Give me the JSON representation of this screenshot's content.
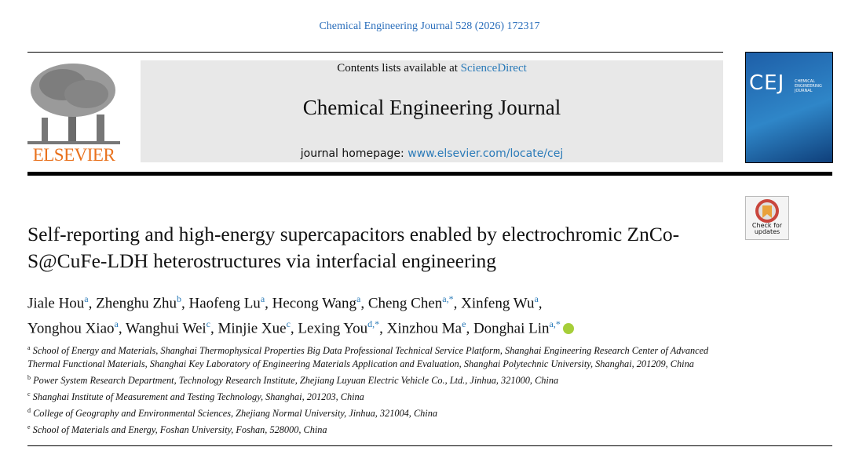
{
  "header": {
    "citation": "Chemical Engineering Journal 528 (2026) 172317",
    "contents_prefix": "Contents lists available at",
    "contents_link": "ScienceDirect",
    "journal": "Chemical Engineering Journal",
    "homepage_prefix": "journal homepage:",
    "homepage_link": "www.elsevier.com/locate/cej",
    "publisher": "ELSEVIER",
    "cover_title": "CEJ",
    "cover_subtitle": "CHEMICAL ENGINEERING JOURNAL",
    "check_updates": "Check for updates"
  },
  "article": {
    "title": "Self-reporting and high-energy supercapacitors enabled by electrochromic ZnCo-S@CuFe-LDH heterostructures via interfacial engineering",
    "authors": [
      [
        {
          "name": "Jiale Hou",
          "sup": "a",
          "sep": ","
        },
        {
          "name": "Zhenghu Zhu",
          "sup": "b",
          "sep": ","
        },
        {
          "name": "Haofeng Lu",
          "sup": "a",
          "sep": ","
        },
        {
          "name": "Hecong Wang",
          "sup": "a",
          "sep": ","
        },
        {
          "name": "Cheng Chen",
          "sup": "a,*",
          "sep": ","
        },
        {
          "name": "Xinfeng Wu",
          "sup": "a",
          "sep": ","
        }
      ],
      [
        {
          "name": "Yonghou Xiao",
          "sup": "a",
          "sep": ","
        },
        {
          "name": "Wanghui Wei",
          "sup": "c",
          "sep": ","
        },
        {
          "name": "Minjie Xue",
          "sup": "c",
          "sep": ","
        },
        {
          "name": "Lexing You",
          "sup": "d,*",
          "sep": ","
        },
        {
          "name": "Xinzhou Ma",
          "sup": "e",
          "sep": ","
        },
        {
          "name": "Donghai Lin",
          "sup": "a,*"
        }
      ]
    ],
    "affiliations": [
      {
        "label": "a",
        "text": "School of Energy and Materials, Shanghai Thermophysical Properties Big Data Professional Technical Service Platform, Shanghai Engineering Research Center of Advanced Thermal Functional Materials, Shanghai Key Laboratory of Engineering Materials Application and Evaluation, Shanghai Polytechnic University, Shanghai, 201209, China"
      },
      {
        "label": "b",
        "text": "Power System Research Department, Technology Research Institute, Zhejiang Luyuan Electric Vehicle Co., Ltd., Jinhua, 321000, China"
      },
      {
        "label": "c",
        "text": "Shanghai Institute of Measurement and Testing Technology, Shanghai, 201203, China"
      },
      {
        "label": "d",
        "text": "College of Geography and Environmental Sciences, Zhejiang Normal University, Jinhua, 321004, China"
      },
      {
        "label": "e",
        "text": "School of Materials and Energy, Foshan University, Foshan, 528000, China"
      }
    ]
  }
}
